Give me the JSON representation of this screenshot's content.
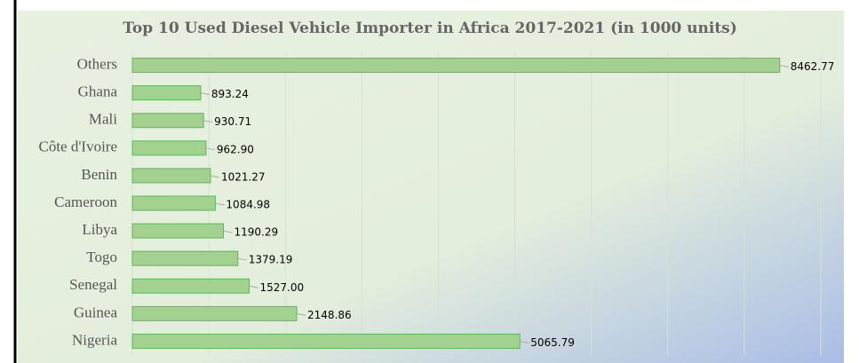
{
  "chart_data": {
    "type": "bar",
    "orientation": "horizontal",
    "title": "Top 10 Used Diesel Vehicle Importer in Africa 2017-2021 (in 1000 units)",
    "categories": [
      "Others",
      "Ghana",
      "Mali",
      "Côte d'Ivoire",
      "Benin",
      "Cameroon",
      "Libya",
      "Togo",
      "Senegal",
      "Guinea",
      "Nigeria"
    ],
    "values": [
      8462.77,
      893.24,
      930.71,
      962.9,
      1021.27,
      1084.98,
      1190.29,
      1379.19,
      1527,
      2148.86,
      5065.79
    ],
    "value_labels": [
      "8462.77",
      "893.24",
      "930.71",
      "962.90",
      "1021.27",
      "1084.98",
      "1190.29",
      "1379.19",
      "1527.00",
      "2148.86",
      "5065.79"
    ],
    "color": "#a3d18f",
    "xlim": [
      0,
      9000
    ],
    "xticks": [
      0,
      1000,
      2000,
      3000,
      4000,
      5000,
      6000,
      7000,
      8000,
      9000
    ],
    "grid": true
  }
}
